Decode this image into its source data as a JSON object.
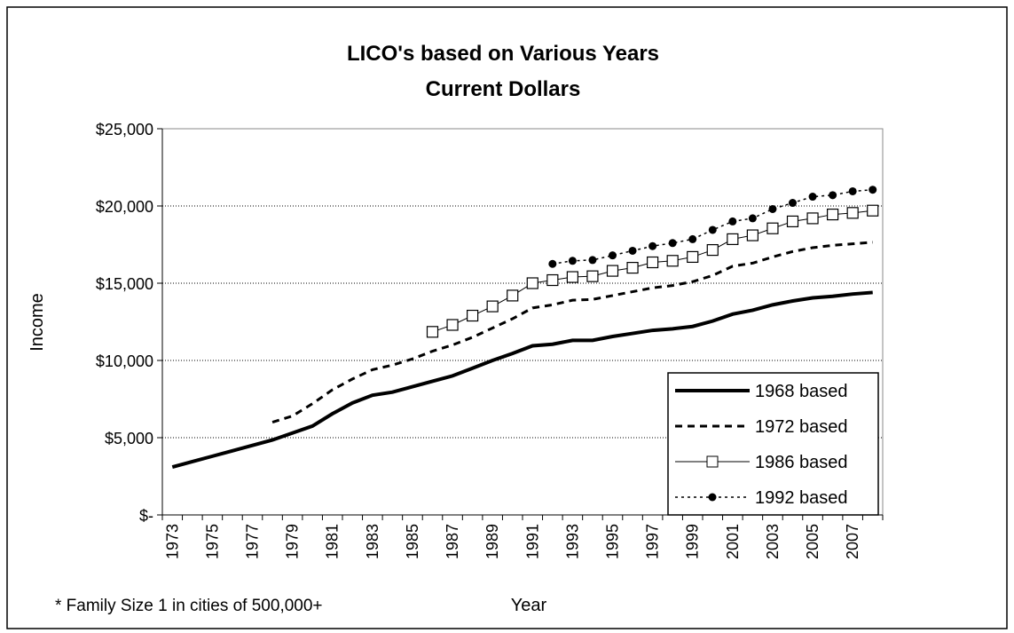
{
  "chart_data": {
    "type": "line",
    "title": "LICO's based on Various Years",
    "subtitle": "Current Dollars",
    "x_label": "Year",
    "y_label": "Income",
    "footnote": "* Family Size 1 in cities of 500,000+",
    "categories": [
      "1973",
      null,
      "1975",
      null,
      "1977",
      null,
      "1979",
      null,
      "1981",
      null,
      "1983",
      null,
      "1985",
      null,
      "1987",
      null,
      "1989",
      null,
      "1991",
      null,
      "1993",
      null,
      "1995",
      null,
      "1997",
      null,
      "1999",
      null,
      "2001",
      null,
      "2003",
      null,
      "2005",
      null,
      "2007",
      null
    ],
    "ylim": [
      0,
      25000
    ],
    "yticks": [
      {
        "value": 0,
        "label": "$-"
      },
      {
        "value": 5000,
        "label": "$5,000"
      },
      {
        "value": 10000,
        "label": "$10,000"
      },
      {
        "value": 15000,
        "label": "$15,000"
      },
      {
        "value": 20000,
        "label": "$20,000"
      },
      {
        "value": 25000,
        "label": "$25,000"
      }
    ],
    "grid": true,
    "legend": "lower right",
    "series": [
      {
        "name": "1968 based",
        "color": "#000000",
        "line_width": 4,
        "dash": "solid",
        "marker": "none",
        "values": [
          3100,
          3450,
          3800,
          4150,
          4500,
          4850,
          5300,
          5750,
          6550,
          7250,
          7750,
          7950,
          8300,
          8650,
          9000,
          9500,
          10000,
          10450,
          10950,
          11050,
          11300,
          11300,
          11550,
          11750,
          11950,
          12050,
          12200,
          12550,
          13000,
          13250,
          13600,
          13850,
          14050,
          14150,
          14300,
          14400
        ]
      },
      {
        "name": "1972 based",
        "color": "#000000",
        "line_width": 3,
        "dash": "dashed",
        "marker": "none",
        "values": [
          null,
          null,
          null,
          null,
          null,
          6000,
          6400,
          7200,
          8100,
          8800,
          9400,
          9700,
          10100,
          10600,
          11000,
          11500,
          12100,
          12700,
          13400,
          13600,
          13900,
          13950,
          14200,
          14450,
          14700,
          14850,
          15100,
          15500,
          16100,
          16300,
          16700,
          17050,
          17300,
          17450,
          17550,
          17650
        ]
      },
      {
        "name": "1986 based",
        "color": "#000000",
        "line_width": 1,
        "dash": "solid",
        "marker": "square",
        "values": [
          null,
          null,
          null,
          null,
          null,
          null,
          null,
          null,
          null,
          null,
          null,
          null,
          null,
          11850,
          12300,
          12900,
          13500,
          14200,
          15000,
          15200,
          15400,
          15450,
          15800,
          16000,
          16350,
          16450,
          16700,
          17150,
          17850,
          18100,
          18550,
          19000,
          19200,
          19450,
          19550,
          19700
        ]
      },
      {
        "name": "1992 based",
        "color": "#000000",
        "line_width": 1.5,
        "dash": "dotted",
        "marker": "circle",
        "values": [
          null,
          null,
          null,
          null,
          null,
          null,
          null,
          null,
          null,
          null,
          null,
          null,
          null,
          null,
          null,
          null,
          null,
          null,
          null,
          16250,
          16450,
          16500,
          16800,
          17100,
          17400,
          17600,
          17850,
          18450,
          19000,
          19200,
          19800,
          20200,
          20600,
          20700,
          20950,
          21050
        ]
      }
    ]
  }
}
